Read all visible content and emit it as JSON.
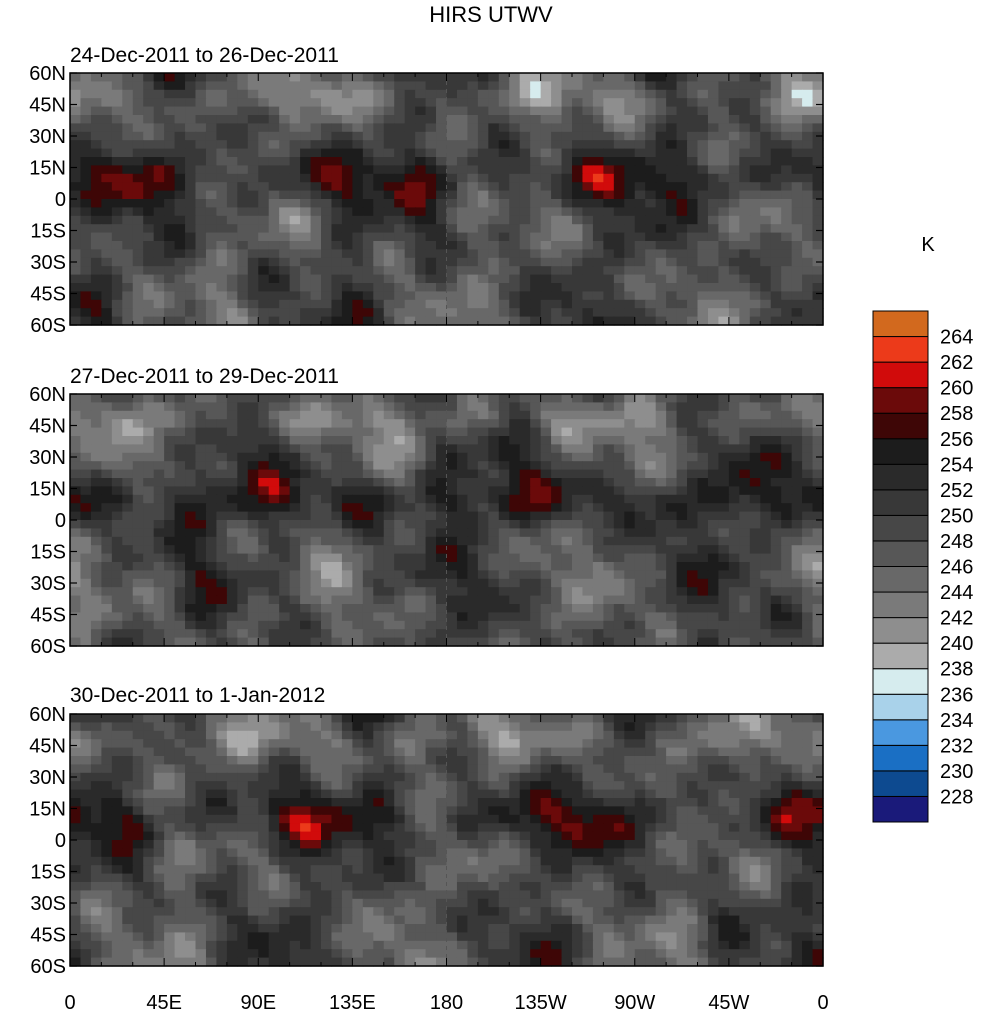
{
  "chart_data": {
    "type": "heatmap",
    "title": "HIRS UTWV",
    "units_label": "K",
    "panels": [
      {
        "subtitle": "24-Dec-2011 to 26-Dec-2011"
      },
      {
        "subtitle": "27-Dec-2011 to 29-Dec-2011"
      },
      {
        "subtitle": "30-Dec-2011 to 1-Jan-2012"
      }
    ],
    "x_ticks": [
      "0",
      "45E",
      "90E",
      "135E",
      "180",
      "135W",
      "90W",
      "45W",
      "0"
    ],
    "y_ticks": [
      "60N",
      "45N",
      "30N",
      "15N",
      "0",
      "15S",
      "30S",
      "45S",
      "60S"
    ],
    "lon_range": [
      0,
      360
    ],
    "lat_range": [
      -60,
      60
    ],
    "colorbar": {
      "levels": [
        "228",
        "230",
        "232",
        "234",
        "236",
        "238",
        "240",
        "242",
        "244",
        "246",
        "248",
        "250",
        "252",
        "254",
        "256",
        "258",
        "260",
        "262",
        "264"
      ],
      "colors": [
        "#1a1a7a",
        "#0d4a90",
        "#1a6fc4",
        "#4a98e0",
        "#a9d2ea",
        "#d6ecee",
        "#ababab",
        "#8e8e8e",
        "#7a7a7a",
        "#686868",
        "#575757",
        "#474747",
        "#383838",
        "#2a2a2a",
        "#1c1c1c",
        "#3e0606",
        "#6b0a0a",
        "#d10b0b",
        "#ec3a1a",
        "#d2691e"
      ]
    }
  }
}
